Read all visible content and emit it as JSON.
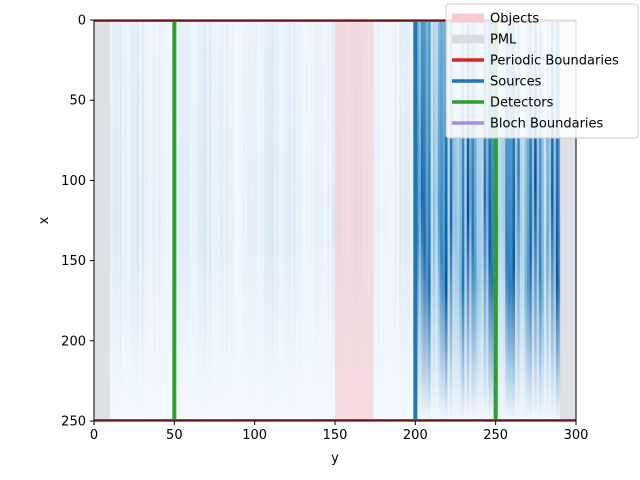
{
  "chart_data": {
    "type": "heatmap",
    "title": "",
    "xlabel": "y",
    "ylabel": "x",
    "xlim": [
      0,
      300
    ],
    "ylim": [
      250,
      0
    ],
    "x_ticks": [
      0,
      50,
      100,
      150,
      200,
      250,
      300
    ],
    "y_ticks": [
      0,
      50,
      100,
      150,
      200,
      250
    ],
    "colormap": "Blues",
    "pml_regions": [
      {
        "y_range": [
          0,
          10
        ]
      },
      {
        "y_range": [
          290,
          300
        ]
      }
    ],
    "objects": [
      {
        "y_range": [
          150,
          174
        ]
      }
    ],
    "periodic_boundaries": [
      {
        "x": 0
      },
      {
        "x": 250
      }
    ],
    "sources": [
      {
        "y": 200
      }
    ],
    "detectors": [
      {
        "y": 50
      },
      {
        "y": 250
      }
    ],
    "field_profile": {
      "description_free_values": true,
      "strong_region_y": [
        200,
        290
      ],
      "strong_intensity": 0.9,
      "weak_region_y": [
        10,
        200
      ],
      "weak_intensity": 0.18
    },
    "legend": {
      "placement": "top-right",
      "entries": [
        {
          "label": "Objects",
          "color": "#f8c9cf"
        },
        {
          "label": "PML",
          "color": "#d9dde2"
        },
        {
          "label": "Periodic Boundaries",
          "color": "#d62728"
        },
        {
          "label": "Sources",
          "color": "#1f77b4"
        },
        {
          "label": "Detectors",
          "color": "#2ca02c"
        },
        {
          "label": "Bloch Boundaries",
          "color": "#a98ce8"
        }
      ]
    }
  }
}
